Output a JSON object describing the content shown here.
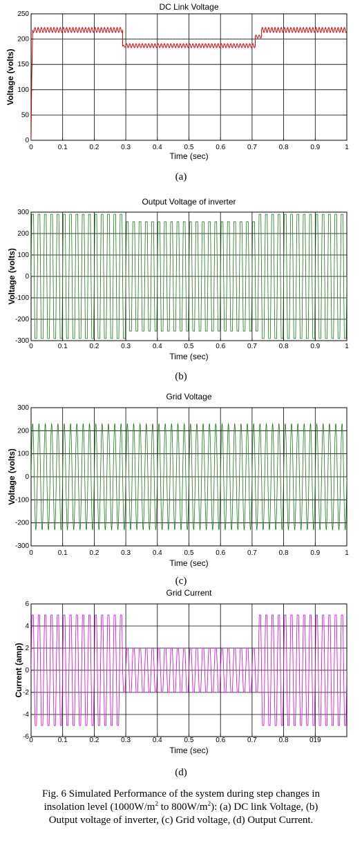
{
  "chart_data": [
    {
      "type": "line",
      "title": "DC Link Voltage",
      "xlabel": "Time (sec)",
      "ylabel": "Voltage (volts)",
      "xlim": [
        0,
        1
      ],
      "ylim": [
        0,
        250
      ],
      "x_ticks": [
        "0",
        "0.1",
        "0.2",
        "0.3",
        "0.4",
        "0.5",
        "0.6",
        "0.7",
        "0.8",
        "0.9",
        "1"
      ],
      "y_ticks": [
        "0",
        "50",
        "100",
        "150",
        "200",
        "250"
      ],
      "grid": true,
      "color": "#e00000",
      "series": [
        {
          "segments": [
            {
              "from": 0.0,
              "to": 0.005,
              "level": 0,
              "ripple": 0
            },
            {
              "from": 0.005,
              "to": 0.29,
              "level": 218,
              "ripple": 5
            },
            {
              "from": 0.29,
              "to": 0.3,
              "level": 186,
              "ripple": 2
            },
            {
              "from": 0.3,
              "to": 0.71,
              "level": 187,
              "ripple": 4
            },
            {
              "from": 0.71,
              "to": 0.73,
              "level": 205,
              "ripple": 3
            },
            {
              "from": 0.73,
              "to": 1.0,
              "level": 218,
              "ripple": 5
            }
          ],
          "ripple_hz": 100
        }
      ],
      "sublabel": "(a)"
    },
    {
      "type": "line",
      "title": "Output Voltage of inverter",
      "xlabel": "Time (sec)",
      "ylabel": "Voltage (volts)",
      "xlim": [
        0,
        1
      ],
      "ylim": [
        -300,
        300
      ],
      "x_ticks": [
        "0",
        "0.1",
        "0.2",
        "0.3",
        "0.4",
        "0.5",
        "0.6",
        "0.7",
        "0.8",
        "0.9",
        "1"
      ],
      "y_ticks": [
        "-300",
        "-200",
        "-100",
        "0",
        "100",
        "200",
        "300"
      ],
      "grid": true,
      "color": "#1a7a1a",
      "series": [
        {
          "frequency_hz": 50,
          "segments": [
            {
              "from": 0.0,
              "to": 0.3,
              "amplitude": 290
            },
            {
              "from": 0.3,
              "to": 0.72,
              "amplitude": 255
            },
            {
              "from": 0.72,
              "to": 1.0,
              "amplitude": 290
            }
          ]
        }
      ],
      "sublabel": "(b)"
    },
    {
      "type": "line",
      "title": "Grid Voltage",
      "xlabel": "Time (sec)",
      "ylabel": "Voltage (volts)",
      "xlim": [
        0,
        1
      ],
      "ylim": [
        -300,
        300
      ],
      "x_ticks": [
        "0",
        "0.1",
        "0.2",
        "0.3",
        "0.4",
        "0.5",
        "0.6",
        "0.7",
        "0.8",
        "0.9",
        "1"
      ],
      "y_ticks": [
        "-300",
        "-200",
        "-100",
        "0",
        "100",
        "200",
        "300"
      ],
      "grid": true,
      "color": "#1a7a1a",
      "series": [
        {
          "frequency_hz": 50,
          "segments": [
            {
              "from": 0.0,
              "to": 1.0,
              "amplitude": 230
            }
          ]
        }
      ],
      "sublabel": "(c)"
    },
    {
      "type": "line",
      "title": "Grid Current",
      "xlabel": "Time (sec)",
      "ylabel": "Current (amp)",
      "xlim": [
        0,
        1
      ],
      "ylim": [
        -6,
        6
      ],
      "x_ticks": [
        "0",
        "0.1",
        "0.2",
        "0.3",
        "0.4",
        "0.5",
        "0.6",
        "0.7",
        "0.8",
        "019",
        ""
      ],
      "y_ticks": [
        "-6",
        "-4",
        "-2",
        "0",
        "2",
        "4",
        "6"
      ],
      "grid": true,
      "color": "#d400d4",
      "series": [
        {
          "frequency_hz": 50,
          "segments": [
            {
              "from": 0.0,
              "to": 0.29,
              "amplitude": 5
            },
            {
              "from": 0.29,
              "to": 0.72,
              "amplitude": 2
            },
            {
              "from": 0.72,
              "to": 1.0,
              "amplitude": 5
            }
          ]
        }
      ],
      "sublabel": "(d)"
    }
  ],
  "caption": {
    "line1": "Fig. 6 Simulated Performance of the system during step changes in",
    "line2_a": "insolation level (1000W/m",
    "line2_sup1": "2",
    "line2_b": " to 800W/m",
    "line2_sup2": "2",
    "line2_c": "): (a) DC link Voltage, (b)",
    "line3": "Output voltage of inverter, (c) Grid voltage, (d) Output Current."
  }
}
